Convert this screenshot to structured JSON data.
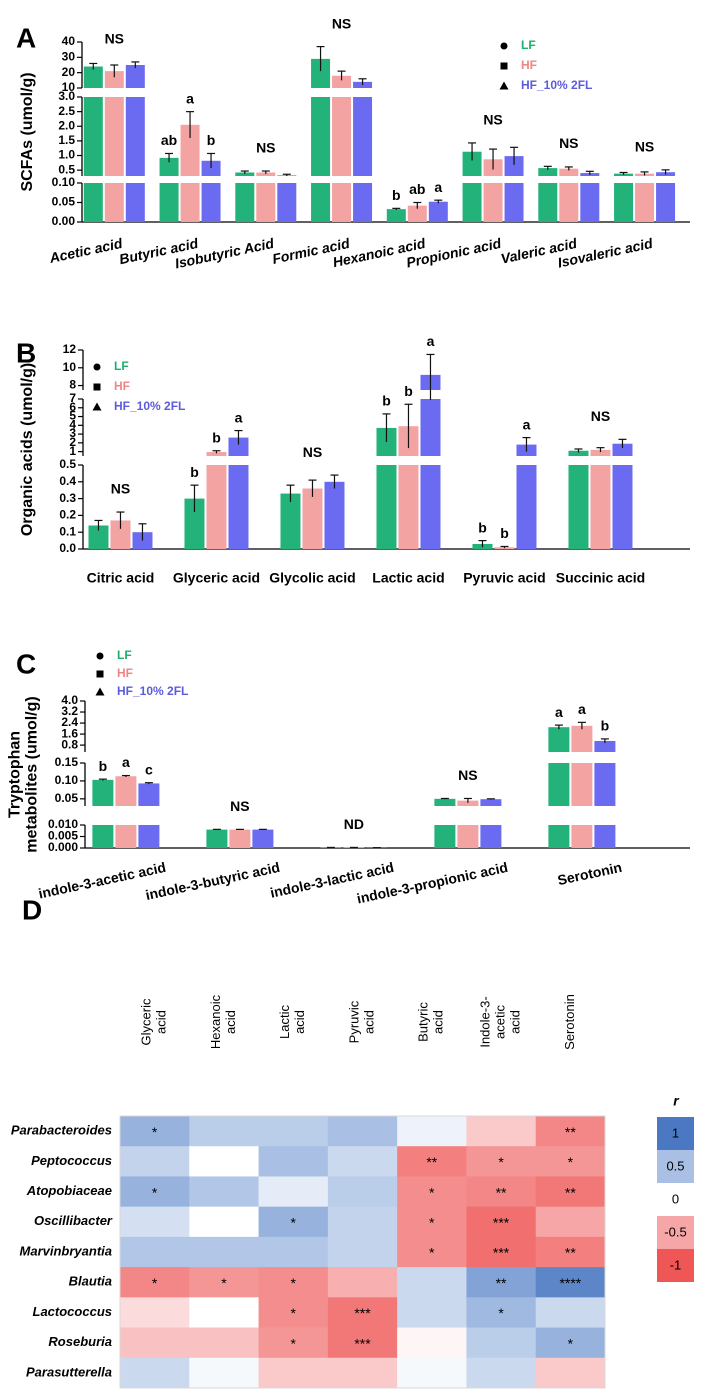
{
  "chart_data": [
    {
      "type": "bar",
      "panel": "A",
      "ylabel": [
        "SCFAs (umol/g)"
      ],
      "categories": [
        "Acetic acid",
        "Butyric acid",
        "Isobutyric Acid",
        "Formic acid",
        "Hexanoic acid",
        "Propionic acid",
        "Valeric acid",
        "Isovaleric acid"
      ],
      "segments": [
        {
          "ylim": [
            0,
            0.1
          ],
          "yticks": [
            {
              "value": 0,
              "label": "0.00"
            },
            0.05,
            {
              "value": 0.1,
              "label": "0.10"
            }
          ]
        },
        {
          "ylim": [
            0.3,
            3
          ],
          "yticks": [
            0.5,
            {
              "value": 1,
              "label": "1.0"
            },
            1.5,
            {
              "value": 2,
              "label": "2.0"
            },
            2.5,
            {
              "value": 3,
              "label": "3.0"
            }
          ]
        },
        {
          "ylim": [
            10,
            40
          ],
          "yticks": [
            10,
            20,
            30,
            40
          ]
        }
      ],
      "series": [
        {
          "name": "LF",
          "color": "#22b27a",
          "text_color": "#1fae6c",
          "marker": "circle",
          "values": [
            24,
            0.92,
            0.42,
            29,
            0.033,
            1.13,
            0.57,
            0.38
          ],
          "errors": [
            2,
            0.15,
            0.05,
            8,
            0.002,
            0.3,
            0.06,
            0.04
          ],
          "significance": [
            null,
            "ab",
            null,
            null,
            "b",
            null,
            null,
            null
          ]
        },
        {
          "name": "HF",
          "color": "#f4a3a3",
          "text_color": "#ee8585",
          "marker": "square",
          "values": [
            21,
            2.05,
            0.42,
            18,
            0.042,
            0.87,
            0.55,
            0.38
          ],
          "errors": [
            4,
            0.45,
            0.05,
            3,
            0.008,
            0.35,
            0.06,
            0.06
          ],
          "significance": [
            null,
            "a",
            null,
            null,
            "ab",
            null,
            null,
            null
          ]
        },
        {
          "name": "HF_10% 2FL",
          "color": "#6b6bf2",
          "text_color": "#5b5bdc",
          "marker": "triangle",
          "values": [
            25,
            0.82,
            0.32,
            14,
            0.052,
            0.98,
            0.4,
            0.43
          ],
          "errors": [
            2,
            0.25,
            0.04,
            2,
            0.004,
            0.3,
            0.06,
            0.08
          ],
          "significance": [
            null,
            "b",
            null,
            null,
            "a",
            null,
            null,
            null
          ]
        }
      ],
      "group_labels": [
        "NS",
        null,
        "NS",
        "NS",
        null,
        "NS",
        "NS",
        "NS"
      ]
    },
    {
      "type": "bar",
      "panel": "B",
      "ylabel": [
        "Organic acids (umol/g)"
      ],
      "categories": [
        "Citric acid",
        "Glyceric acid",
        "Glycolic acid",
        "Lactic acid",
        "Pyruvic acid",
        "Succinic acid"
      ],
      "segments": [
        {
          "ylim": [
            0,
            0.5
          ],
          "yticks": [
            {
              "value": 0,
              "label": "0.0"
            },
            0.1,
            0.2,
            0.3,
            0.4,
            0.5
          ]
        },
        {
          "ylim": [
            0.5,
            7
          ],
          "yticks": [
            1,
            2,
            3,
            4,
            5,
            6,
            7
          ]
        },
        {
          "ylim": [
            7.5,
            12
          ],
          "yticks": [
            8,
            10,
            12
          ]
        }
      ],
      "series": [
        {
          "name": "LF",
          "color": "#22b27a",
          "text_color": "#1fae6c",
          "marker": "circle",
          "values": [
            0.14,
            0.3,
            0.33,
            3.7,
            0.03,
            1.1
          ],
          "errors": [
            0.03,
            0.08,
            0.05,
            1.6,
            0.02,
            0.2
          ],
          "significance": [
            null,
            "b",
            null,
            "b",
            "b",
            null
          ]
        },
        {
          "name": "HF",
          "color": "#f4a3a3",
          "text_color": "#ee8585",
          "marker": "square",
          "values": [
            0.17,
            0.95,
            0.36,
            3.9,
            0.01,
            1.2
          ],
          "errors": [
            0.05,
            0.15,
            0.05,
            2.5,
            0.005,
            0.25
          ],
          "significance": [
            null,
            "b",
            null,
            "b",
            "b",
            null
          ]
        },
        {
          "name": "HF_10% 2FL",
          "color": "#6b6bf2",
          "text_color": "#5b5bdc",
          "marker": "triangle",
          "values": [
            0.1,
            2.6,
            0.4,
            9.2,
            1.8,
            1.9
          ],
          "errors": [
            0.05,
            0.8,
            0.04,
            2.3,
            0.8,
            0.5
          ],
          "significance": [
            null,
            "a",
            null,
            "a",
            "a",
            null
          ]
        }
      ],
      "group_labels": [
        "NS",
        null,
        "NS",
        null,
        null,
        "NS"
      ]
    },
    {
      "type": "bar",
      "panel": "C",
      "ylabel": [
        "Tryptophan",
        "metabolites (umol/g)"
      ],
      "categories": [
        "indole-3-acetic acid",
        "indole-3-butyric acid",
        "indole-3-lactic acid",
        "indole-3-propionic acid",
        "Serotonin"
      ],
      "segments": [
        {
          "ylim": [
            0,
            0.01
          ],
          "yticks": [
            {
              "value": 0,
              "label": "0.000"
            },
            0.005,
            {
              "value": 0.01,
              "label": "0.010"
            }
          ]
        },
        {
          "ylim": [
            0.03,
            0.15
          ],
          "yticks": [
            0.05,
            {
              "value": 0.1,
              "label": "0.10"
            },
            0.15
          ]
        },
        {
          "ylim": [
            0.3,
            4
          ],
          "yticks": [
            0.8,
            1.6,
            2.4,
            3.2,
            {
              "value": 4,
              "label": "4.0"
            }
          ]
        }
      ],
      "series": [
        {
          "name": "LF",
          "color": "#22b27a",
          "text_color": "#1fae6c",
          "marker": "circle",
          "values": [
            0.103,
            0.008,
            0.0002,
            0.05,
            2.1
          ],
          "errors": [
            0.002,
            0.0001,
            5e-05,
            0.001,
            0.15
          ],
          "significance": [
            "b",
            null,
            null,
            null,
            "a"
          ]
        },
        {
          "name": "HF",
          "color": "#f4a3a3",
          "text_color": "#ee8585",
          "marker": "square",
          "values": [
            0.113,
            0.008,
            0.0002,
            0.045,
            2.2
          ],
          "errors": [
            0.002,
            0.0001,
            5e-05,
            0.006,
            0.25
          ],
          "significance": [
            "a",
            null,
            null,
            null,
            "a"
          ]
        },
        {
          "name": "HF_10% 2FL",
          "color": "#6b6bf2",
          "text_color": "#5b5bdc",
          "marker": "triangle",
          "values": [
            0.093,
            0.008,
            0.0001,
            0.049,
            1.1
          ],
          "errors": [
            0.002,
            0.0001,
            5e-05,
            0.001,
            0.15
          ],
          "significance": [
            "c",
            null,
            null,
            null,
            "b"
          ]
        }
      ],
      "group_labels": [
        null,
        "NS",
        "ND",
        "NS",
        null
      ]
    },
    {
      "type": "heatmap",
      "panel": "D",
      "columns": [
        [
          "Glyceric",
          "acid"
        ],
        [
          "Hexanoic",
          "acid"
        ],
        [
          "Lactic",
          "acid"
        ],
        [
          "Pyruvic",
          "acid"
        ],
        [
          "Butyric",
          "acid"
        ],
        [
          "Indole-3-",
          "acetic",
          "acid"
        ],
        [
          "Serotonin"
        ]
      ],
      "rows": [
        "Parabacteroides",
        "Peptococcus",
        "Atopobiaceae",
        "Oscillibacter",
        "Marvinbryantia",
        "Blautia",
        "Lactococcus",
        "Roseburia",
        "Parasutterella"
      ],
      "values": [
        [
          0.6,
          0.4,
          0.4,
          0.5,
          0.1,
          -0.3,
          -0.7
        ],
        [
          0.35,
          0,
          0.5,
          0.3,
          -0.75,
          -0.6,
          -0.6
        ],
        [
          0.6,
          0.45,
          0.15,
          0.4,
          -0.65,
          -0.7,
          -0.8
        ],
        [
          0.25,
          0,
          0.6,
          0.35,
          -0.65,
          -0.85,
          -0.5
        ],
        [
          0.45,
          0.45,
          0.45,
          0.35,
          -0.65,
          -0.85,
          -0.75
        ],
        [
          -0.7,
          -0.6,
          -0.65,
          -0.45,
          0.3,
          0.7,
          0.9
        ],
        [
          -0.2,
          0,
          -0.65,
          -0.8,
          0.3,
          0.55,
          0.3
        ],
        [
          -0.35,
          -0.35,
          -0.6,
          -0.8,
          -0.05,
          0.4,
          0.6
        ],
        [
          0.3,
          0.05,
          -0.3,
          -0.3,
          0.05,
          0.3,
          -0.3
        ]
      ],
      "labels": [
        [
          "*",
          null,
          null,
          null,
          null,
          null,
          "**"
        ],
        [
          null,
          null,
          null,
          null,
          "**",
          "*",
          "*"
        ],
        [
          "*",
          null,
          null,
          null,
          "*",
          "**",
          "**"
        ],
        [
          null,
          null,
          "*",
          null,
          "*",
          "***",
          null
        ],
        [
          null,
          null,
          null,
          null,
          "*",
          "***",
          "**"
        ],
        [
          "*",
          "*",
          "*",
          null,
          null,
          "**",
          "****"
        ],
        [
          null,
          null,
          "*",
          "***",
          null,
          "*",
          null
        ],
        [
          null,
          null,
          "*",
          "***",
          null,
          null,
          "*"
        ],
        [
          null,
          null,
          null,
          null,
          null,
          null,
          null
        ]
      ],
      "colorbar": {
        "title": "r",
        "ticks": [
          1,
          0.5,
          0,
          -0.5,
          -1
        ],
        "colors": [
          "#4a78c2",
          "#a9c0e4",
          "#ffffff",
          "#f6a6a6",
          "#ef5757"
        ]
      }
    }
  ]
}
